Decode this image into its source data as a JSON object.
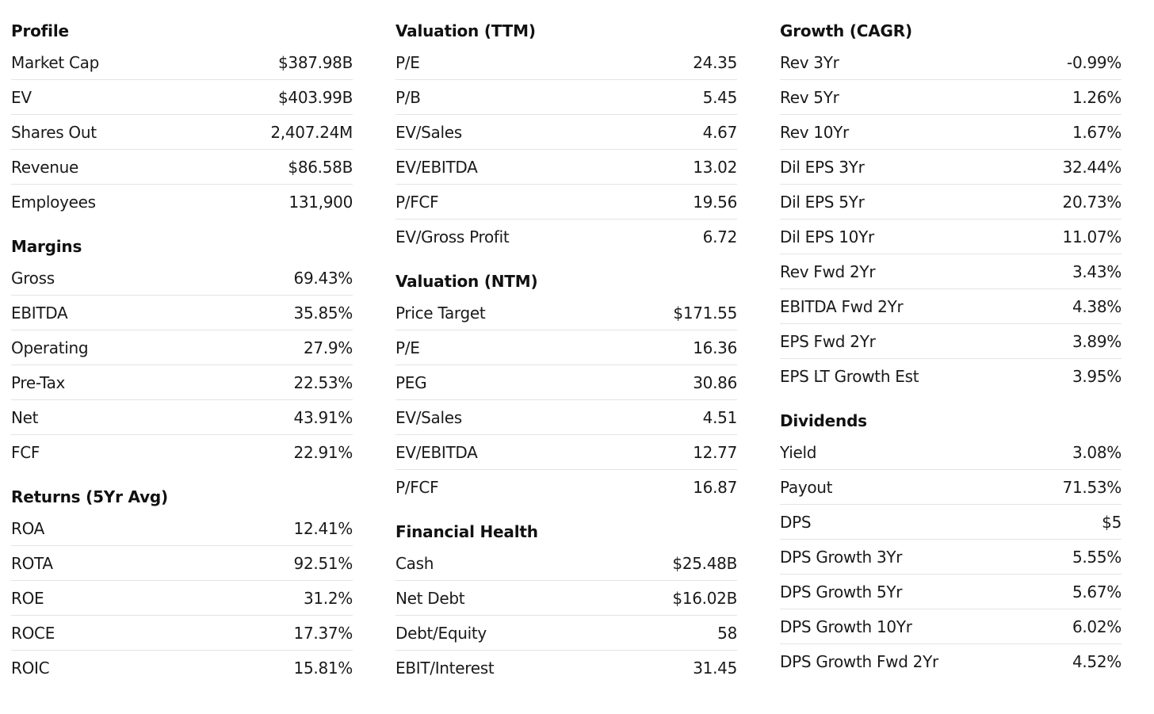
{
  "columns": [
    {
      "sections": [
        {
          "title": "Profile",
          "rows": [
            {
              "label": "Market Cap",
              "value": "$387.98B"
            },
            {
              "label": "EV",
              "value": "$403.99B"
            },
            {
              "label": "Shares Out",
              "value": "2,407.24M"
            },
            {
              "label": "Revenue",
              "value": "$86.58B"
            },
            {
              "label": "Employees",
              "value": "131,900"
            }
          ]
        },
        {
          "title": "Margins",
          "rows": [
            {
              "label": "Gross",
              "value": "69.43%"
            },
            {
              "label": "EBITDA",
              "value": "35.85%"
            },
            {
              "label": "Operating",
              "value": "27.9%"
            },
            {
              "label": "Pre-Tax",
              "value": "22.53%"
            },
            {
              "label": "Net",
              "value": "43.91%"
            },
            {
              "label": "FCF",
              "value": "22.91%"
            }
          ]
        },
        {
          "title": "Returns (5Yr Avg)",
          "rows": [
            {
              "label": "ROA",
              "value": "12.41%"
            },
            {
              "label": "ROTA",
              "value": "92.51%"
            },
            {
              "label": "ROE",
              "value": "31.2%"
            },
            {
              "label": "ROCE",
              "value": "17.37%"
            },
            {
              "label": "ROIC",
              "value": "15.81%"
            }
          ]
        }
      ]
    },
    {
      "sections": [
        {
          "title": "Valuation (TTM)",
          "rows": [
            {
              "label": "P/E",
              "value": "24.35"
            },
            {
              "label": "P/B",
              "value": "5.45"
            },
            {
              "label": "EV/Sales",
              "value": "4.67"
            },
            {
              "label": "EV/EBITDA",
              "value": "13.02"
            },
            {
              "label": "P/FCF",
              "value": "19.56"
            },
            {
              "label": "EV/Gross Profit",
              "value": "6.72"
            }
          ]
        },
        {
          "title": "Valuation (NTM)",
          "rows": [
            {
              "label": "Price Target",
              "value": "$171.55"
            },
            {
              "label": "P/E",
              "value": "16.36"
            },
            {
              "label": "PEG",
              "value": "30.86"
            },
            {
              "label": "EV/Sales",
              "value": "4.51"
            },
            {
              "label": "EV/EBITDA",
              "value": "12.77"
            },
            {
              "label": "P/FCF",
              "value": "16.87"
            }
          ]
        },
        {
          "title": "Financial Health",
          "rows": [
            {
              "label": "Cash",
              "value": "$25.48B"
            },
            {
              "label": "Net Debt",
              "value": "$16.02B"
            },
            {
              "label": "Debt/Equity",
              "value": "58"
            },
            {
              "label": "EBIT/Interest",
              "value": "31.45"
            }
          ]
        }
      ]
    },
    {
      "sections": [
        {
          "title": "Growth (CAGR)",
          "rows": [
            {
              "label": "Rev 3Yr",
              "value": "-0.99%"
            },
            {
              "label": "Rev 5Yr",
              "value": "1.26%"
            },
            {
              "label": "Rev 10Yr",
              "value": "1.67%"
            },
            {
              "label": "Dil EPS 3Yr",
              "value": "32.44%"
            },
            {
              "label": "Dil EPS 5Yr",
              "value": "20.73%"
            },
            {
              "label": "Dil EPS 10Yr",
              "value": "11.07%"
            },
            {
              "label": "Rev Fwd 2Yr",
              "value": "3.43%"
            },
            {
              "label": "EBITDA Fwd 2Yr",
              "value": "4.38%"
            },
            {
              "label": "EPS Fwd 2Yr",
              "value": "3.89%"
            },
            {
              "label": "EPS LT Growth Est",
              "value": "3.95%"
            }
          ]
        },
        {
          "title": "Dividends",
          "rows": [
            {
              "label": "Yield",
              "value": "3.08%"
            },
            {
              "label": "Payout",
              "value": "71.53%"
            },
            {
              "label": "DPS",
              "value": "$5"
            },
            {
              "label": "DPS Growth 3Yr",
              "value": "5.55%"
            },
            {
              "label": "DPS Growth 5Yr",
              "value": "5.67%"
            },
            {
              "label": "DPS Growth 10Yr",
              "value": "6.02%"
            },
            {
              "label": "DPS Growth Fwd 2Yr",
              "value": "4.52%"
            }
          ]
        }
      ]
    }
  ]
}
